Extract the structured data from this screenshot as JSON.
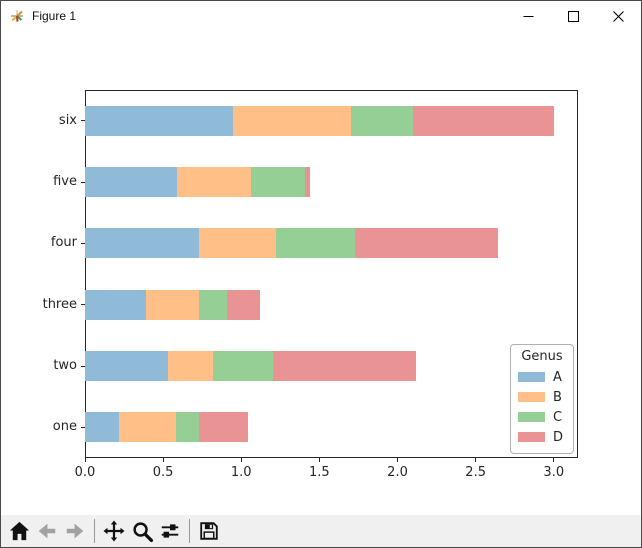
{
  "window": {
    "title": "Figure 1",
    "controls": [
      {
        "icon": "minimize-icon"
      },
      {
        "icon": "maximize-icon"
      },
      {
        "icon": "close-icon"
      }
    ]
  },
  "chart_data": {
    "type": "bar",
    "orientation": "horizontal",
    "stacked": true,
    "categories": [
      "one",
      "two",
      "three",
      "four",
      "five",
      "six"
    ],
    "series": [
      {
        "name": "A",
        "color": "#8fbbd9",
        "values": [
          0.22,
          0.53,
          0.39,
          0.73,
          0.59,
          0.95
        ]
      },
      {
        "name": "B",
        "color": "#ffbf86",
        "values": [
          0.36,
          0.29,
          0.34,
          0.49,
          0.47,
          0.75
        ]
      },
      {
        "name": "C",
        "color": "#95cf95",
        "values": [
          0.15,
          0.38,
          0.18,
          0.51,
          0.35,
          0.4
        ]
      },
      {
        "name": "D",
        "color": "#ea9394",
        "values": [
          0.31,
          0.92,
          0.21,
          0.91,
          0.03,
          0.9
        ]
      }
    ],
    "x_ticks": [
      "0.0",
      "0.5",
      "1.0",
      "1.5",
      "2.0",
      "2.5",
      "3.0"
    ],
    "xlim": [
      0,
      3.155
    ],
    "grid": false,
    "legend": {
      "title": "Genus",
      "position": "lower right"
    }
  },
  "toolbar": {
    "items": [
      {
        "icon": "home-icon",
        "disabled": false
      },
      {
        "icon": "back-icon",
        "disabled": true
      },
      {
        "icon": "forward-icon",
        "disabled": true
      },
      {
        "separator": true
      },
      {
        "icon": "pan-icon",
        "disabled": false
      },
      {
        "icon": "zoom-icon",
        "disabled": false
      },
      {
        "icon": "subplots-icon",
        "disabled": false
      },
      {
        "separator": true
      },
      {
        "icon": "save-icon",
        "disabled": false
      }
    ]
  }
}
